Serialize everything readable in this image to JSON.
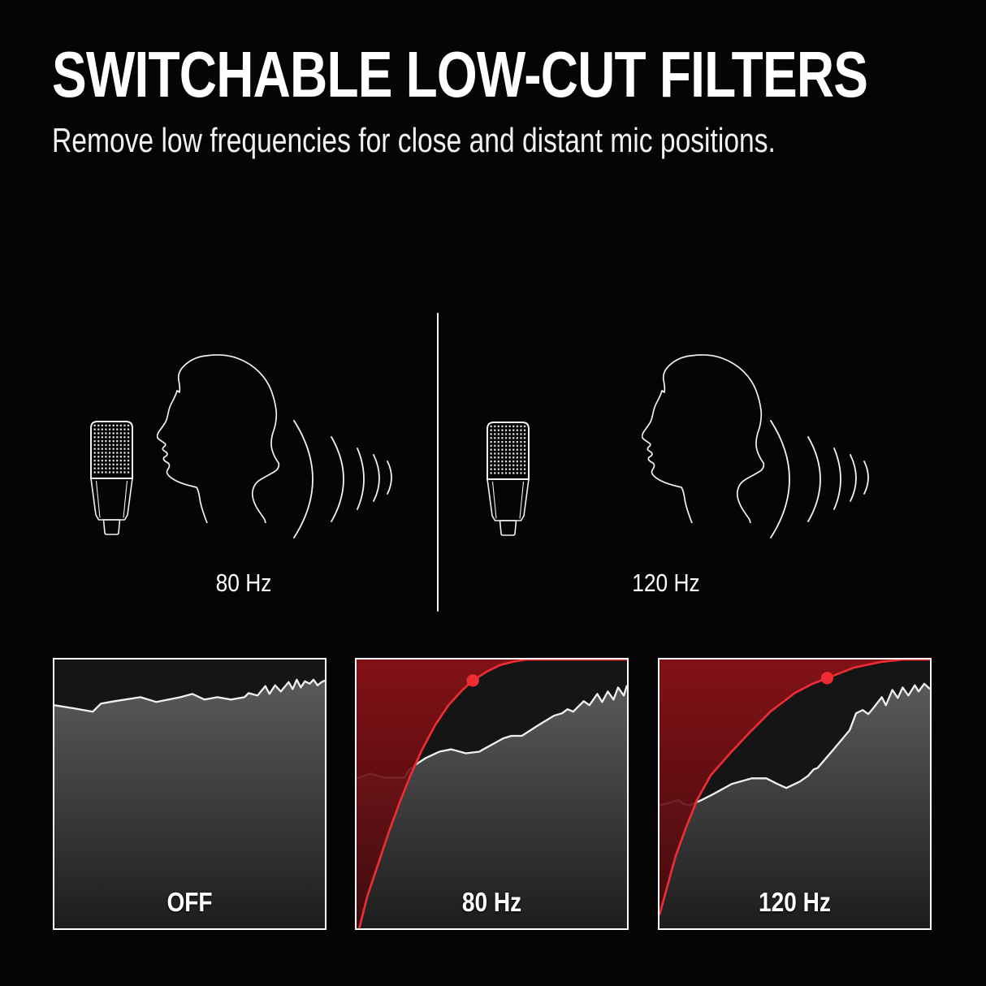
{
  "header": {
    "title": "SWITCHABLE LOW-CUT FILTERS",
    "subtitle": "Remove low frequencies for close and distant mic positions."
  },
  "illustrations": {
    "close": {
      "label": "80 Hz"
    },
    "distant": {
      "label": "120 Hz"
    }
  },
  "colors": {
    "background": "#050505",
    "line_art": "#f2f2f2",
    "accent": "#ee2c33",
    "filter_fill_top": "#8e1116",
    "filter_fill_bottom": "#42090c",
    "panel_bg": "#151515",
    "panel_border": "#ffffff",
    "response_line": "#f0f0f0",
    "response_fill_top": "#5a5a5a",
    "response_fill_bottom": "#1d1d1d"
  },
  "chart_data": [
    {
      "type": "area",
      "label": "OFF",
      "axes_labeled": false,
      "series": [
        {
          "name": "mic-response",
          "points": [
            [
              0,
              83
            ],
            [
              7.4,
              81.8
            ],
            [
              14.2,
              80.6
            ],
            [
              17.2,
              83.6
            ],
            [
              22.3,
              84.5
            ],
            [
              31.8,
              86
            ],
            [
              37.7,
              84.2
            ],
            [
              46.6,
              86
            ],
            [
              51,
              87.2
            ],
            [
              55.5,
              85.1
            ],
            [
              60.2,
              86
            ],
            [
              65.3,
              85.1
            ],
            [
              70.3,
              86
            ],
            [
              71.8,
              87.5
            ],
            [
              75.1,
              86.6
            ],
            [
              78,
              90.1
            ],
            [
              79.5,
              87.2
            ],
            [
              81.6,
              90.4
            ],
            [
              83.7,
              88.1
            ],
            [
              86.6,
              91.6
            ],
            [
              88.1,
              89
            ],
            [
              89.6,
              92.5
            ],
            [
              91.1,
              89.6
            ],
            [
              92.6,
              91.9
            ],
            [
              94.4,
              91
            ],
            [
              95.8,
              92.5
            ],
            [
              97.3,
              90.4
            ],
            [
              98.8,
              91.6
            ],
            [
              100,
              92.2
            ]
          ]
        }
      ]
    },
    {
      "type": "area",
      "label": "80 Hz",
      "cutoff_hz": 80,
      "axes_labeled": false,
      "series": [
        {
          "name": "mic-response",
          "points": [
            [
              0,
              55.8
            ],
            [
              5.3,
              57.6
            ],
            [
              9.8,
              56.1
            ],
            [
              17.8,
              56.1
            ],
            [
              19.3,
              58.8
            ],
            [
              22.3,
              61.2
            ],
            [
              25.5,
              63.3
            ],
            [
              30.6,
              65.7
            ],
            [
              35,
              66.6
            ],
            [
              40.4,
              65.1
            ],
            [
              45.4,
              65.7
            ],
            [
              46.9,
              66.6
            ],
            [
              54.3,
              70.7
            ],
            [
              57.3,
              71.6
            ],
            [
              61.1,
              71.6
            ],
            [
              67.1,
              75.5
            ],
            [
              73,
              79.1
            ],
            [
              76,
              80
            ],
            [
              78,
              81.5
            ],
            [
              80.1,
              80.6
            ],
            [
              84,
              84.5
            ],
            [
              86.1,
              83
            ],
            [
              89,
              87.2
            ],
            [
              90.8,
              84.2
            ],
            [
              92.9,
              88.1
            ],
            [
              95,
              85.1
            ],
            [
              96.7,
              89.6
            ],
            [
              98.8,
              86.6
            ],
            [
              100,
              90.4
            ]
          ]
        },
        {
          "name": "low-cut-filter",
          "points": [
            [
              1,
              0
            ],
            [
              4,
              12
            ],
            [
              8,
              24
            ],
            [
              12,
              36
            ],
            [
              16,
              47
            ],
            [
              20,
              57
            ],
            [
              24,
              66
            ],
            [
              29,
              75.5
            ],
            [
              34,
              83
            ],
            [
              39,
              88.5
            ],
            [
              43,
              92.2
            ],
            [
              48,
              95.4
            ],
            [
              53,
              97.9
            ],
            [
              58,
              99.2
            ],
            [
              63,
              100
            ],
            [
              100,
              100
            ]
          ],
          "marker": [
            43,
            92.2
          ]
        }
      ]
    },
    {
      "type": "area",
      "label": "120 Hz",
      "cutoff_hz": 120,
      "axes_labeled": false,
      "series": [
        {
          "name": "mic-response",
          "points": [
            [
              0,
              45.7
            ],
            [
              4.5,
              46.9
            ],
            [
              6.8,
              47.8
            ],
            [
              8.9,
              46.3
            ],
            [
              11,
              45.7
            ],
            [
              15.7,
              47.8
            ],
            [
              20.2,
              50.1
            ],
            [
              26.7,
              53.7
            ],
            [
              34.1,
              55.8
            ],
            [
              39.5,
              55.8
            ],
            [
              43.6,
              53.7
            ],
            [
              46.9,
              52.2
            ],
            [
              51.9,
              54.6
            ],
            [
              54.9,
              56.7
            ],
            [
              57,
              59.1
            ],
            [
              58.5,
              59.7
            ],
            [
              64.4,
              66.6
            ],
            [
              70.3,
              73.7
            ],
            [
              72.7,
              80
            ],
            [
              75.1,
              81.2
            ],
            [
              77.2,
              79.7
            ],
            [
              79.2,
              82.1
            ],
            [
              82.2,
              86
            ],
            [
              83.7,
              83
            ],
            [
              86.1,
              88.7
            ],
            [
              88.1,
              85.7
            ],
            [
              89.9,
              89.6
            ],
            [
              92,
              86.6
            ],
            [
              94.4,
              90.4
            ],
            [
              95.8,
              88.1
            ],
            [
              97.9,
              91
            ],
            [
              100,
              89
            ]
          ]
        },
        {
          "name": "low-cut-filter",
          "points": [
            [
              0,
              5
            ],
            [
              3,
              16
            ],
            [
              6,
              27
            ],
            [
              10,
              38
            ],
            [
              14,
              48
            ],
            [
              19,
              57
            ],
            [
              26,
              65
            ],
            [
              33,
              72.5
            ],
            [
              41,
              80.6
            ],
            [
              50,
              87.5
            ],
            [
              56,
              90.7
            ],
            [
              62,
              93.1
            ],
            [
              72,
              97
            ],
            [
              82,
              99.1
            ],
            [
              90,
              100
            ],
            [
              100,
              100
            ]
          ],
          "marker": [
            62,
            93.1
          ]
        }
      ]
    }
  ]
}
